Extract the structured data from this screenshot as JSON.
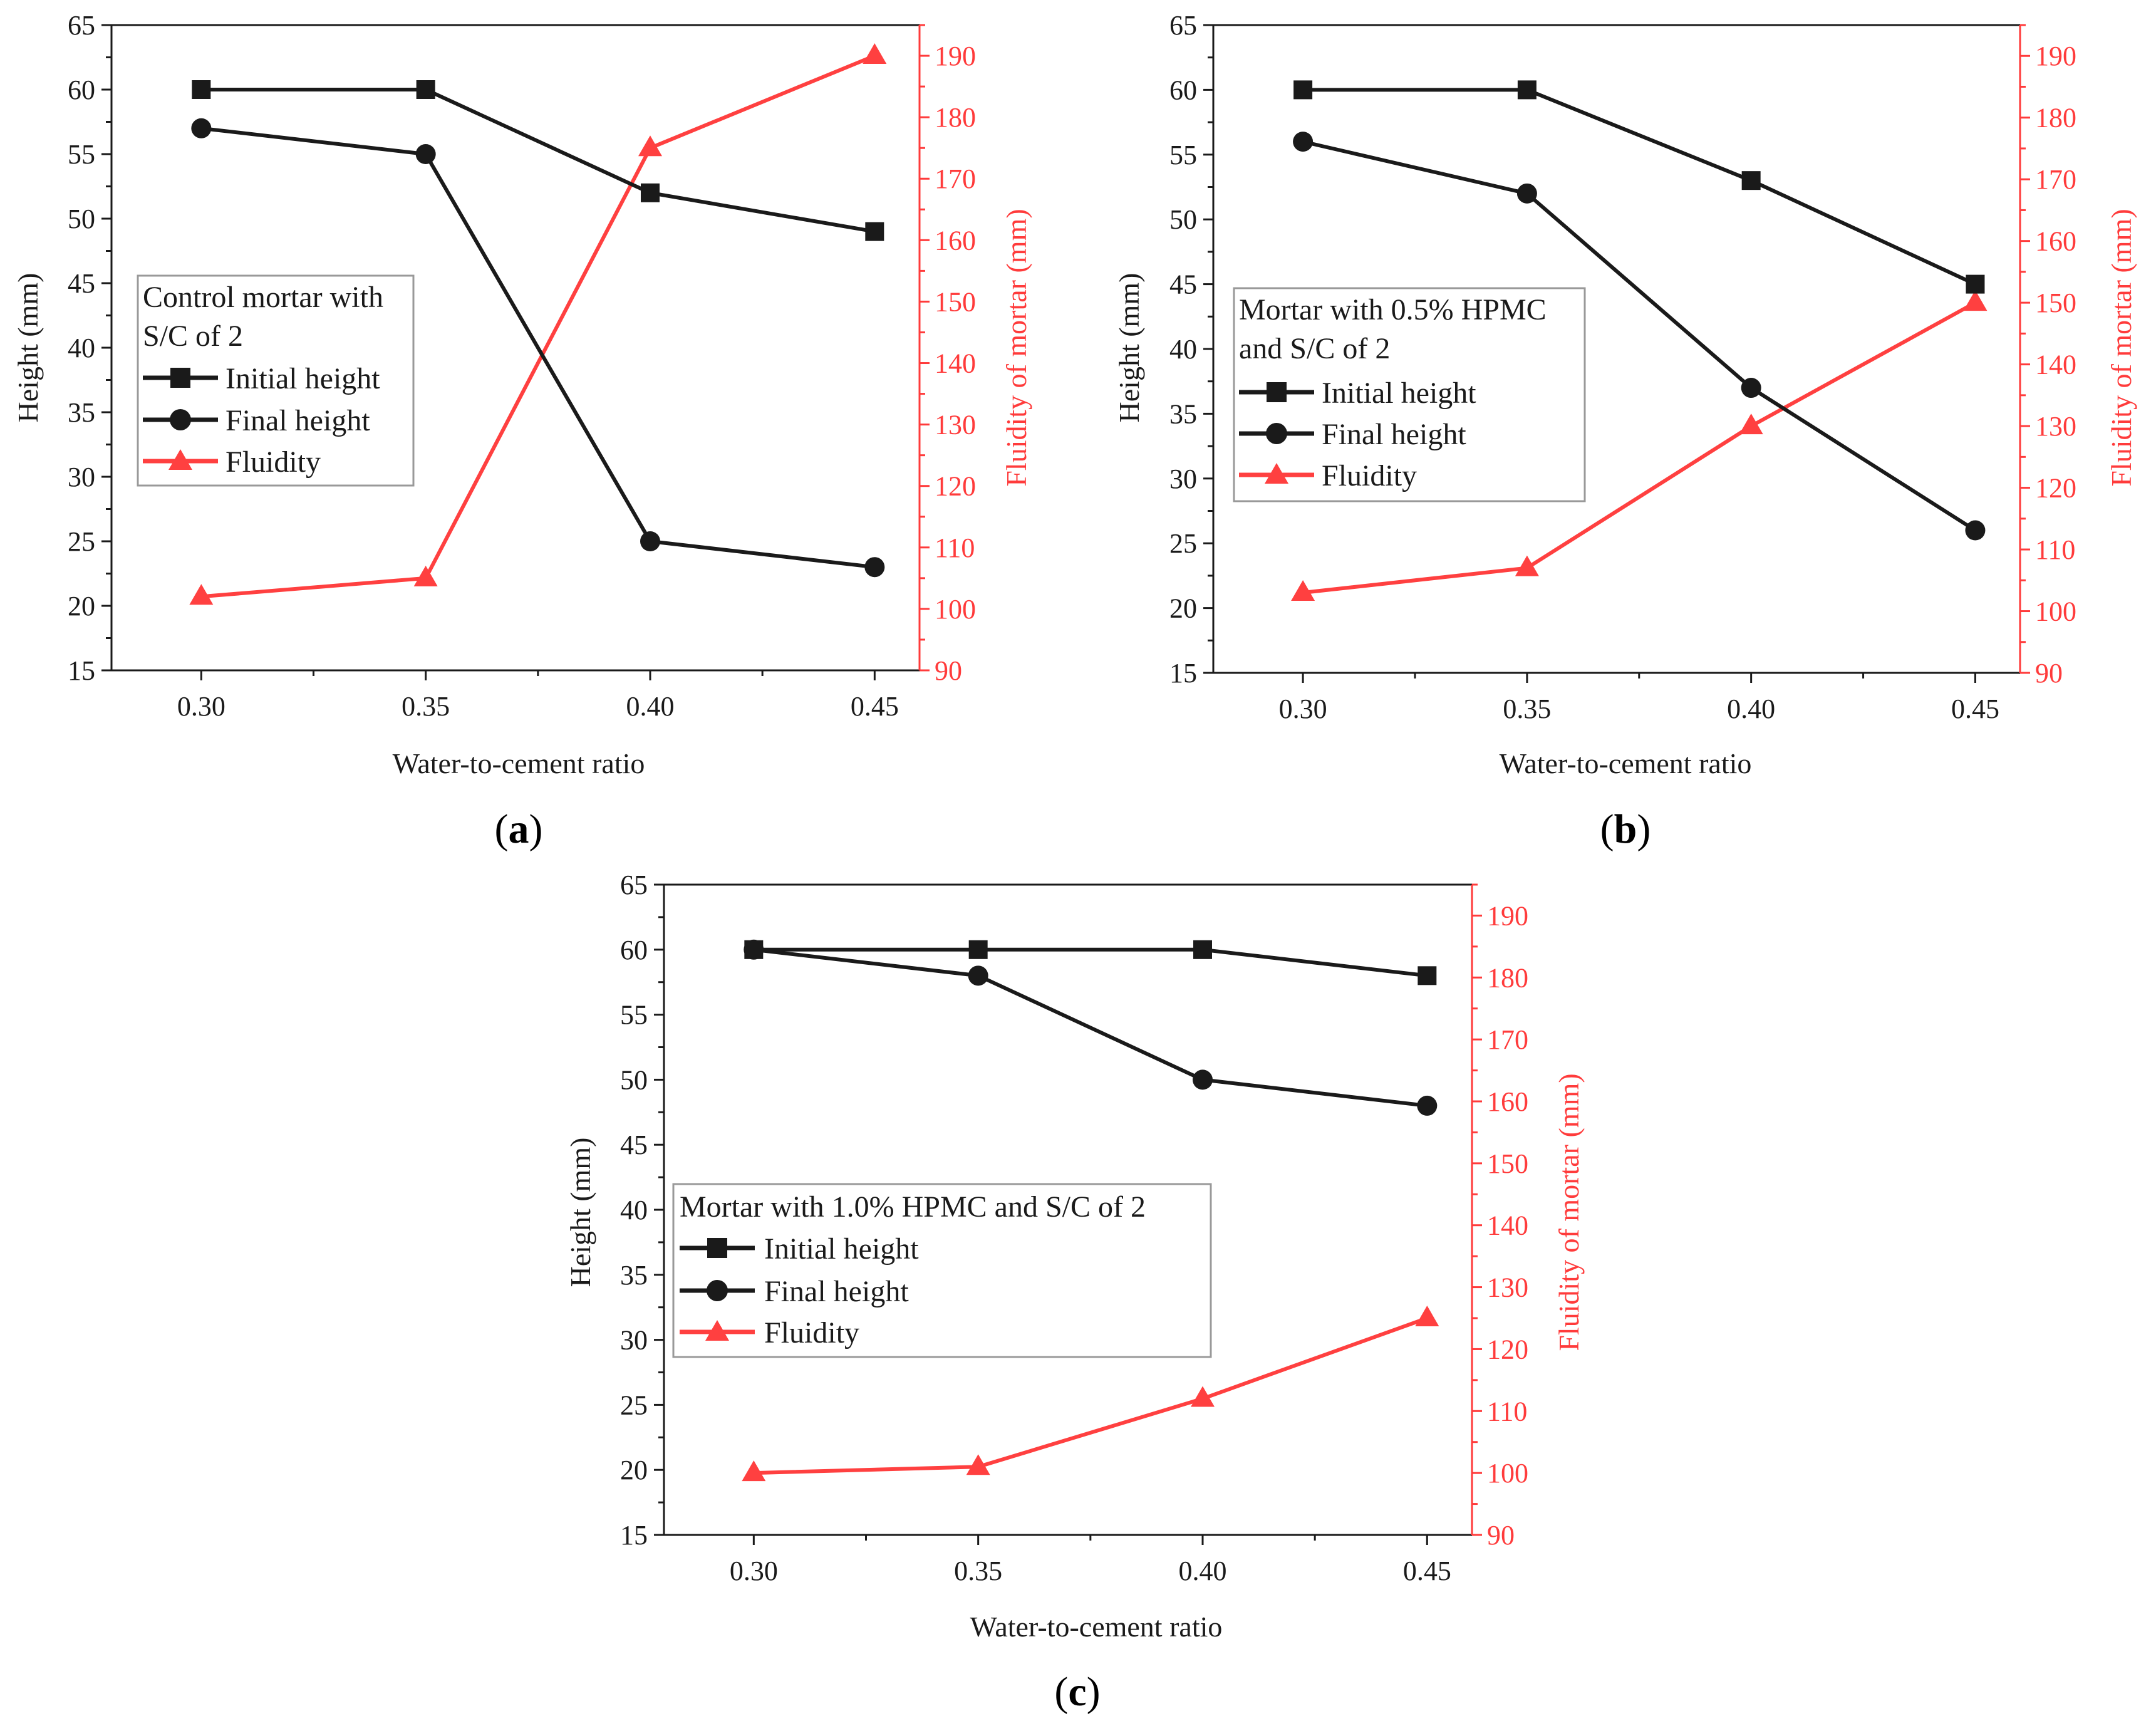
{
  "colors": {
    "black": "#1a1a1a",
    "red": "#ff4040",
    "red_axis": "#ff3b3b",
    "background": "#ffffff"
  },
  "chart_data": [
    {
      "type": "line",
      "panel_label": "a",
      "xlabel": "Water-to-cement ratio",
      "ylabel": "Height (mm)",
      "ylabel_right": "Fluidity of mortar (mm)",
      "x": [
        0.3,
        0.35,
        0.4,
        0.45
      ],
      "x_tick_labels": [
        "0.30",
        "0.35",
        "0.40",
        "0.45"
      ],
      "xlim": [
        0.28,
        0.46
      ],
      "ylim": [
        15,
        65
      ],
      "y_ticks": [
        15,
        20,
        25,
        30,
        35,
        40,
        45,
        50,
        55,
        60,
        65
      ],
      "ylim_right": [
        90,
        195
      ],
      "y_ticks_right": [
        90,
        100,
        110,
        120,
        130,
        140,
        150,
        160,
        170,
        180,
        190
      ],
      "legend_title": [
        "Control mortar with",
        "S/C of 2"
      ],
      "legend_position": "center-left",
      "series": [
        {
          "name": "Initial height",
          "axis": "left",
          "marker": "square",
          "color": "#1a1a1a",
          "values": [
            60,
            60,
            52,
            49
          ]
        },
        {
          "name": "Final height",
          "axis": "left",
          "marker": "circle",
          "color": "#1a1a1a",
          "values": [
            57,
            55,
            25,
            23
          ]
        },
        {
          "name": "Fluidity",
          "axis": "right",
          "marker": "triangle",
          "color": "#ff4040",
          "values": [
            102,
            105,
            175,
            190
          ]
        }
      ]
    },
    {
      "type": "line",
      "panel_label": "b",
      "xlabel": "Water-to-cement ratio",
      "ylabel": "Height (mm)",
      "ylabel_right": "Fluidity of mortar (mm)",
      "x": [
        0.3,
        0.35,
        0.4,
        0.45
      ],
      "x_tick_labels": [
        "0.30",
        "0.35",
        "0.40",
        "0.45"
      ],
      "xlim": [
        0.28,
        0.46
      ],
      "ylim": [
        15,
        65
      ],
      "y_ticks": [
        15,
        20,
        25,
        30,
        35,
        40,
        45,
        50,
        55,
        60,
        65
      ],
      "ylim_right": [
        90,
        195
      ],
      "y_ticks_right": [
        90,
        100,
        110,
        120,
        130,
        140,
        150,
        160,
        170,
        180,
        190
      ],
      "legend_title": [
        "Mortar with 0.5% HPMC",
        "and S/C of 2"
      ],
      "legend_position": "center-left",
      "series": [
        {
          "name": "Initial height",
          "axis": "left",
          "marker": "square",
          "color": "#1a1a1a",
          "values": [
            60,
            60,
            53,
            45
          ]
        },
        {
          "name": "Final height",
          "axis": "left",
          "marker": "circle",
          "color": "#1a1a1a",
          "values": [
            56,
            52,
            37,
            26
          ]
        },
        {
          "name": "Fluidity",
          "axis": "right",
          "marker": "triangle",
          "color": "#ff4040",
          "values": [
            103,
            107,
            130,
            150
          ]
        }
      ]
    },
    {
      "type": "line",
      "panel_label": "c",
      "xlabel": "Water-to-cement ratio",
      "ylabel": "Height (mm)",
      "ylabel_right": "Fluidity of mortar (mm)",
      "x": [
        0.3,
        0.35,
        0.4,
        0.45
      ],
      "x_tick_labels": [
        "0.30",
        "0.35",
        "0.40",
        "0.45"
      ],
      "xlim": [
        0.28,
        0.46
      ],
      "ylim": [
        15,
        65
      ],
      "y_ticks": [
        15,
        20,
        25,
        30,
        35,
        40,
        45,
        50,
        55,
        60,
        65
      ],
      "ylim_right": [
        90,
        195
      ],
      "y_ticks_right": [
        90,
        100,
        110,
        120,
        130,
        140,
        150,
        160,
        170,
        180,
        190
      ],
      "legend_title": [
        "Mortar with 1.0% HPMC and S/C of 2"
      ],
      "legend_position": "center-left",
      "series": [
        {
          "name": "Initial height",
          "axis": "left",
          "marker": "square",
          "color": "#1a1a1a",
          "values": [
            60,
            60,
            60,
            58
          ]
        },
        {
          "name": "Final height",
          "axis": "left",
          "marker": "circle",
          "color": "#1a1a1a",
          "values": [
            60,
            58,
            50,
            48
          ]
        },
        {
          "name": "Fluidity",
          "axis": "right",
          "marker": "triangle",
          "color": "#ff4040",
          "values": [
            100,
            101,
            112,
            125
          ]
        }
      ]
    }
  ]
}
